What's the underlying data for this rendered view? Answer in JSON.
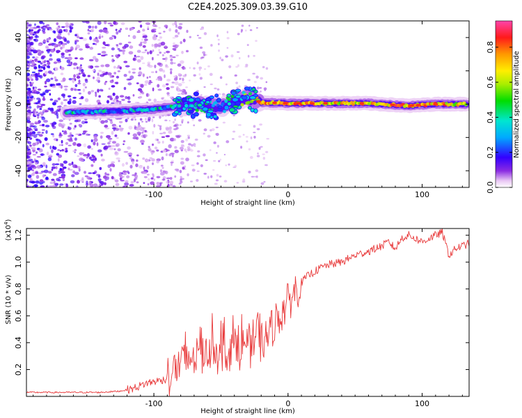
{
  "title": "C2E4.2025.309.03.39.G10",
  "chart_data": [
    {
      "type": "heatmap",
      "xlabel": "Height of straight line (km)",
      "ylabel": "Frequency (Hz)",
      "xlim": [
        -195,
        135
      ],
      "ylim": [
        -50,
        50
      ],
      "xticks": [
        -100,
        0,
        100
      ],
      "yticks": [
        -40,
        -20,
        0,
        20,
        40
      ],
      "colorbar": {
        "label": "Normalized spectral amplitude",
        "range": [
          0.0,
          0.95
        ],
        "ticks": [
          "0.0",
          "0.2",
          "0.4",
          "0.6",
          "0.8"
        ]
      },
      "track": [
        {
          "x": -165,
          "y": -5,
          "amp": 0.35
        },
        {
          "x": -140,
          "y": -4.5,
          "amp": 0.3
        },
        {
          "x": -120,
          "y": -4,
          "amp": 0.28
        },
        {
          "x": -100,
          "y": -3,
          "amp": 0.32
        },
        {
          "x": -80,
          "y": -1,
          "amp": 0.35
        },
        {
          "x": -65,
          "y": 0,
          "amp": 0.4
        },
        {
          "x": -50,
          "y": -2,
          "amp": 0.35
        },
        {
          "x": -40,
          "y": 2,
          "amp": 0.4
        },
        {
          "x": -30,
          "y": 4,
          "amp": 0.5
        },
        {
          "x": -20,
          "y": 1,
          "amp": 0.75
        },
        {
          "x": 0,
          "y": 0.5,
          "amp": 0.75
        },
        {
          "x": 30,
          "y": 0.5,
          "amp": 0.7
        },
        {
          "x": 60,
          "y": 0.5,
          "amp": 0.75
        },
        {
          "x": 90,
          "y": -1,
          "amp": 0.8
        },
        {
          "x": 110,
          "y": 0,
          "amp": 0.75
        },
        {
          "x": 133,
          "y": 0,
          "amp": 0.7
        }
      ]
    },
    {
      "type": "line",
      "xlabel": "Height of straight line (km)",
      "ylabel": "SNR (10 * v/v)",
      "multiplier": "(x10",
      "multiplier_exp": "4",
      "multiplier_close": ")",
      "xlim": [
        -195,
        135
      ],
      "ylim": [
        0,
        1.25
      ],
      "xticks": [
        -100,
        0,
        100
      ],
      "yticks": [
        0.2,
        0.4,
        0.6,
        0.8,
        1.0,
        1.2
      ],
      "color": "#e8393a",
      "series": [
        {
          "name": "SNR",
          "x": [
            -195,
            -180,
            -160,
            -140,
            -125,
            -115,
            -105,
            -95,
            -85,
            -75,
            -65,
            -55,
            -45,
            -35,
            -25,
            -20,
            -15,
            -10,
            -5,
            0,
            5,
            10,
            15,
            20,
            25,
            30,
            40,
            50,
            60,
            70,
            75,
            80,
            85,
            90,
            100,
            110,
            115,
            120,
            125,
            130,
            135
          ],
          "y": [
            0.03,
            0.03,
            0.03,
            0.03,
            0.04,
            0.06,
            0.1,
            0.12,
            0.14,
            0.2,
            0.28,
            0.3,
            0.3,
            0.32,
            0.35,
            0.4,
            0.45,
            0.55,
            0.62,
            0.7,
            0.78,
            0.85,
            0.9,
            0.93,
            0.96,
            0.98,
            1.0,
            1.05,
            1.08,
            1.12,
            1.15,
            1.1,
            1.18,
            1.2,
            1.15,
            1.2,
            1.22,
            1.05,
            1.1,
            1.12,
            1.14
          ]
        }
      ]
    }
  ]
}
